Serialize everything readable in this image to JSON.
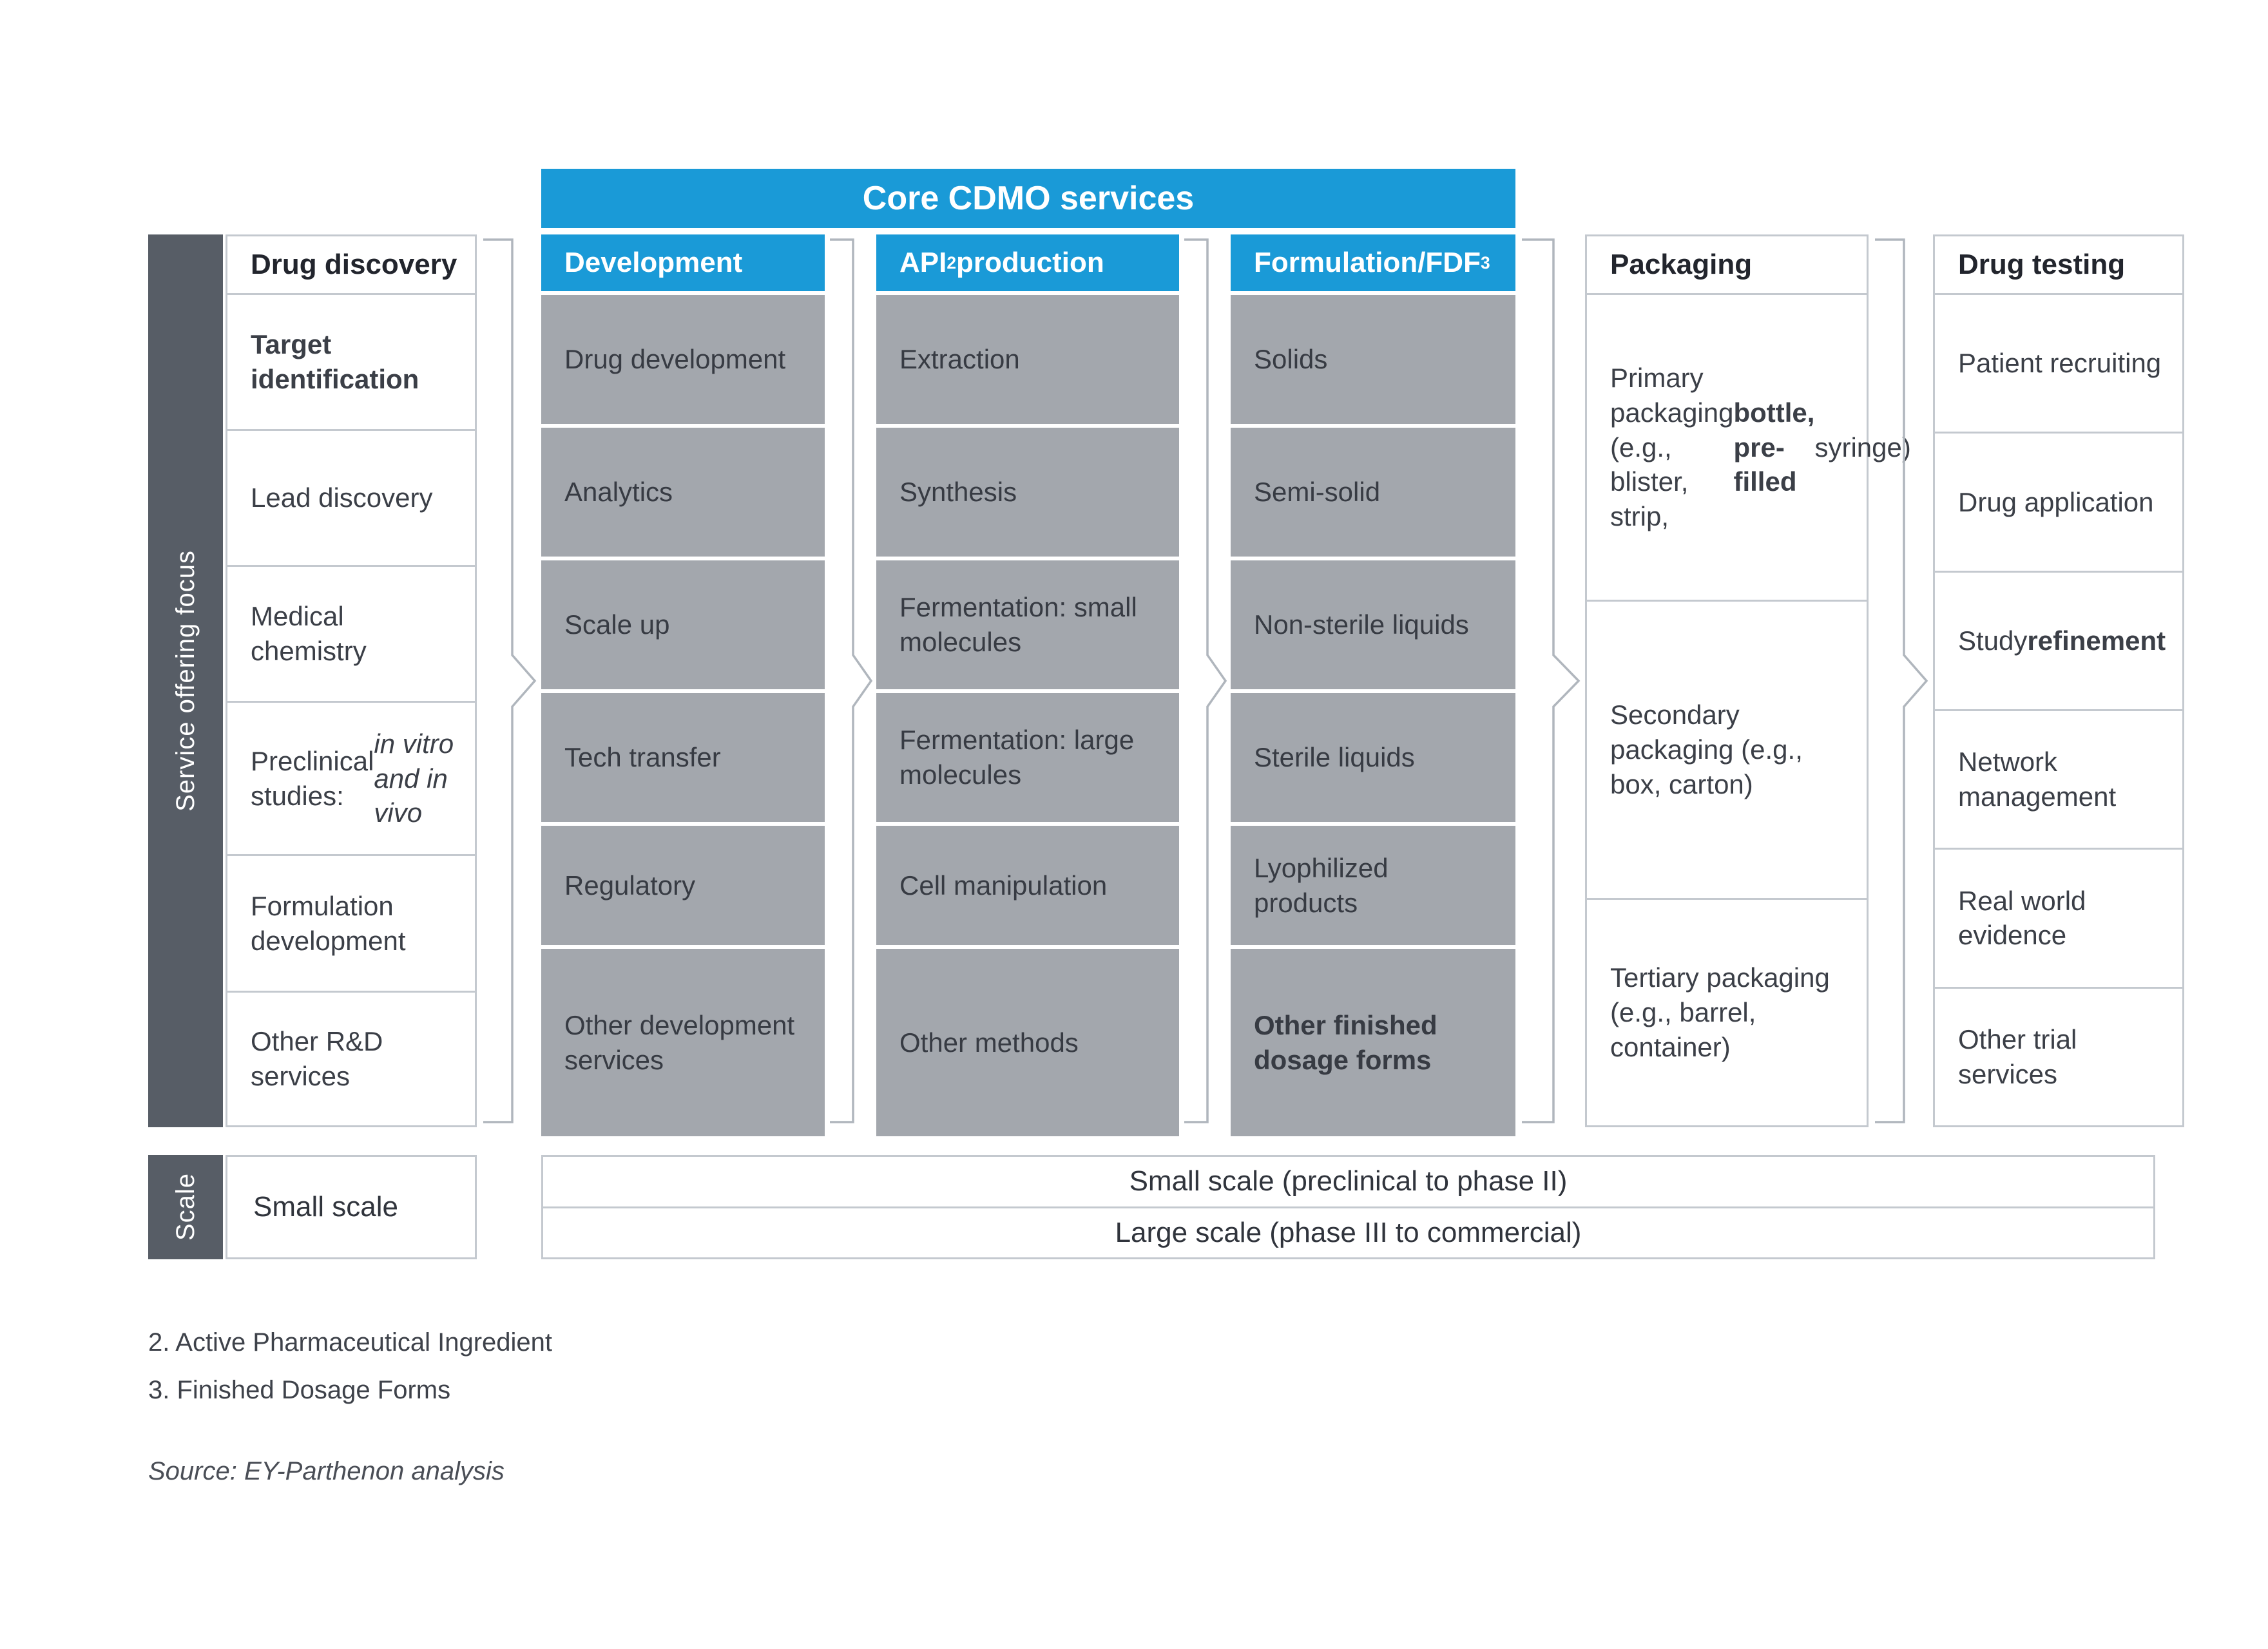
{
  "core_banner": {
    "label": "Core CDMO services"
  },
  "side_labels": {
    "service_focus": "Service offering focus",
    "scale": "Scale"
  },
  "columns": [
    {
      "name": "drug-discovery",
      "variant": "outlined",
      "header": [
        {
          "t": "Drug discovery"
        }
      ],
      "rows": [
        {
          "segments": [
            {
              "t": "Target identification",
              "b": true
            }
          ]
        },
        {
          "segments": [
            {
              "t": "Lead discovery"
            }
          ]
        },
        {
          "segments": [
            {
              "t": "Medical chemistry"
            }
          ]
        },
        {
          "segments": [
            {
              "t": "Preclinical studies: "
            },
            {
              "t": "in vitro and in vivo",
              "i": true
            }
          ]
        },
        {
          "segments": [
            {
              "t": "Formulation development"
            }
          ]
        },
        {
          "segments": [
            {
              "t": "Other R&D services"
            }
          ]
        }
      ]
    },
    {
      "name": "development",
      "variant": "filled",
      "header": [
        {
          "t": "Development"
        }
      ],
      "rows": [
        {
          "segments": [
            {
              "t": "Drug development"
            }
          ]
        },
        {
          "segments": [
            {
              "t": "Analytics"
            }
          ]
        },
        {
          "segments": [
            {
              "t": "Scale up"
            }
          ]
        },
        {
          "segments": [
            {
              "t": "Tech transfer"
            }
          ]
        },
        {
          "segments": [
            {
              "t": "Regulatory"
            }
          ]
        },
        {
          "segments": [
            {
              "t": "Other development services"
            }
          ]
        }
      ]
    },
    {
      "name": "api-production",
      "variant": "filled",
      "header": [
        {
          "t": "API"
        },
        {
          "t": "2",
          "sup": true
        },
        {
          "t": " production"
        }
      ],
      "rows": [
        {
          "segments": [
            {
              "t": "Extraction"
            }
          ]
        },
        {
          "segments": [
            {
              "t": "Synthesis"
            }
          ]
        },
        {
          "segments": [
            {
              "t": "Fermentation: small molecules"
            }
          ]
        },
        {
          "segments": [
            {
              "t": "Fermentation: large molecules"
            }
          ]
        },
        {
          "segments": [
            {
              "t": "Cell manipulation"
            }
          ]
        },
        {
          "segments": [
            {
              "t": "Other methods"
            }
          ]
        }
      ]
    },
    {
      "name": "formulation-fdf",
      "variant": "filled",
      "header": [
        {
          "t": "Formulation/FDF"
        },
        {
          "t": "3",
          "sup": true
        }
      ],
      "rows": [
        {
          "segments": [
            {
              "t": "Solids"
            }
          ]
        },
        {
          "segments": [
            {
              "t": "Semi-solid"
            }
          ]
        },
        {
          "segments": [
            {
              "t": "Non-sterile liquids"
            }
          ]
        },
        {
          "segments": [
            {
              "t": "Sterile liquids"
            }
          ]
        },
        {
          "segments": [
            {
              "t": "Lyophilized products"
            }
          ]
        },
        {
          "segments": [
            {
              "t": "Other finished dosage forms",
              "b": true
            }
          ]
        }
      ]
    },
    {
      "name": "packaging",
      "variant": "outlined",
      "header": [
        {
          "t": "Packaging"
        }
      ],
      "rows": [
        {
          "segments": [
            {
              "t": "Primary packaging (e.g., blister, strip, "
            },
            {
              "t": "bottle, pre-filled",
              "b": true
            },
            {
              "t": " syringe)"
            }
          ]
        },
        {
          "segments": [
            {
              "t": "Secondary packaging (e.g., box, carton)"
            }
          ]
        },
        {
          "segments": [
            {
              "t": "Tertiary packaging (e.g., barrel, container)"
            }
          ]
        }
      ]
    },
    {
      "name": "drug-testing",
      "variant": "outlined",
      "header": [
        {
          "t": "Drug testing"
        }
      ],
      "rows": [
        {
          "segments": [
            {
              "t": "Patient recruiting"
            }
          ]
        },
        {
          "segments": [
            {
              "t": "Drug application"
            }
          ]
        },
        {
          "segments": [
            {
              "t": "Study "
            },
            {
              "t": "refinement",
              "b": true
            }
          ]
        },
        {
          "segments": [
            {
              "t": "Network management"
            }
          ]
        },
        {
          "segments": [
            {
              "t": "Real world evidence"
            }
          ]
        },
        {
          "segments": [
            {
              "t": "Other trial services"
            }
          ]
        }
      ]
    }
  ],
  "scale_section": {
    "small_scale_box": "Small scale",
    "band_rows": [
      "Small scale (preclinical to phase II)",
      "Large scale (phase III to commercial)"
    ]
  },
  "footnotes": [
    "2. Active Pharmaceutical Ingredient",
    "3. Finished Dosage Forms"
  ],
  "source": "Source:  EY-Parthenon analysis",
  "colors": {
    "accent_blue": "#1a9ad7",
    "cell_gray": "#a3a7ad",
    "dark_slate": "#575d66",
    "border_gray": "#c4c9cf",
    "text_dark": "#22252d"
  }
}
